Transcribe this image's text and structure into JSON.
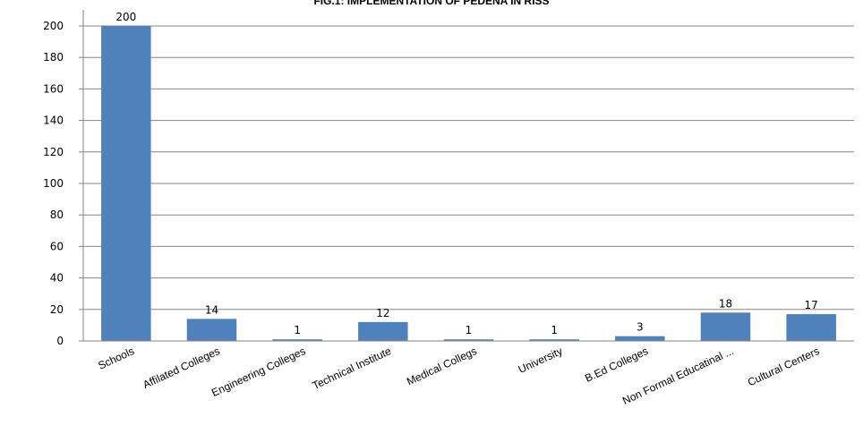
{
  "chart_data": {
    "type": "bar",
    "title": "FIG.1: IMPLEMENTATION OF PEDENA IN RISS",
    "categories": [
      "Schools",
      "Affilated Colleges",
      "Engineering Colleges",
      "Technical Institute",
      "Medical Collegs",
      "University",
      "B.Ed Colleges",
      "Non Formal Educatinal ...",
      "Cultural Centers"
    ],
    "values": [
      200,
      14,
      1,
      12,
      1,
      1,
      3,
      18,
      17
    ],
    "data_labels": [
      "200",
      "14",
      "1",
      "12",
      "1",
      "1",
      "3",
      "18",
      "17"
    ],
    "yticks": [
      "0",
      "20",
      "40",
      "60",
      "80",
      "100",
      "120",
      "140",
      "160",
      "180",
      "200"
    ],
    "ylim": [
      0,
      200
    ],
    "grid": true,
    "legend": "none",
    "colors": {
      "bar": "#4F81BD",
      "grid": "#868686",
      "axis": "#868686"
    }
  }
}
